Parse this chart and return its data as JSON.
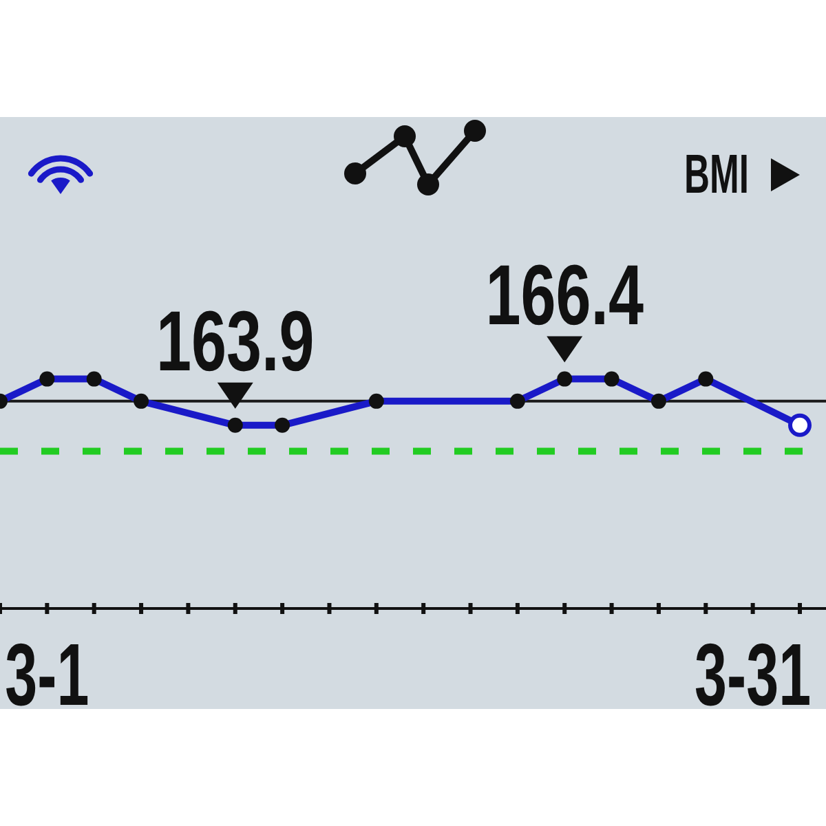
{
  "chart_data": {
    "type": "line",
    "categories": [
      null,
      "3-1",
      null,
      null,
      null,
      null,
      null,
      null,
      null,
      null,
      null,
      null,
      null,
      null,
      null,
      null,
      "3-31",
      null
    ],
    "values": [
      165.2,
      166.4,
      166.4,
      165.2,
      null,
      163.9,
      163.9,
      null,
      165.2,
      null,
      null,
      165.2,
      166.4,
      166.4,
      165.2,
      166.4,
      null,
      163.9
    ],
    "value_labels": [
      null,
      null,
      null,
      null,
      null,
      "163.9",
      null,
      null,
      null,
      null,
      null,
      null,
      "166.4",
      null,
      null,
      null,
      null,
      null
    ],
    "color": "#1a1ac8",
    "marker": "circle",
    "line_style": "solid",
    "tick_labels": "x",
    "ref_lines": [
      {
        "axis": "y",
        "value": 165.2,
        "color": "#1a1a1a",
        "line_style": "solid"
      },
      {
        "axis": "y",
        "value": 162.5,
        "color": "#22cc22",
        "line_style": "dashed"
      }
    ],
    "annotations": [
      "BMI"
    ]
  }
}
